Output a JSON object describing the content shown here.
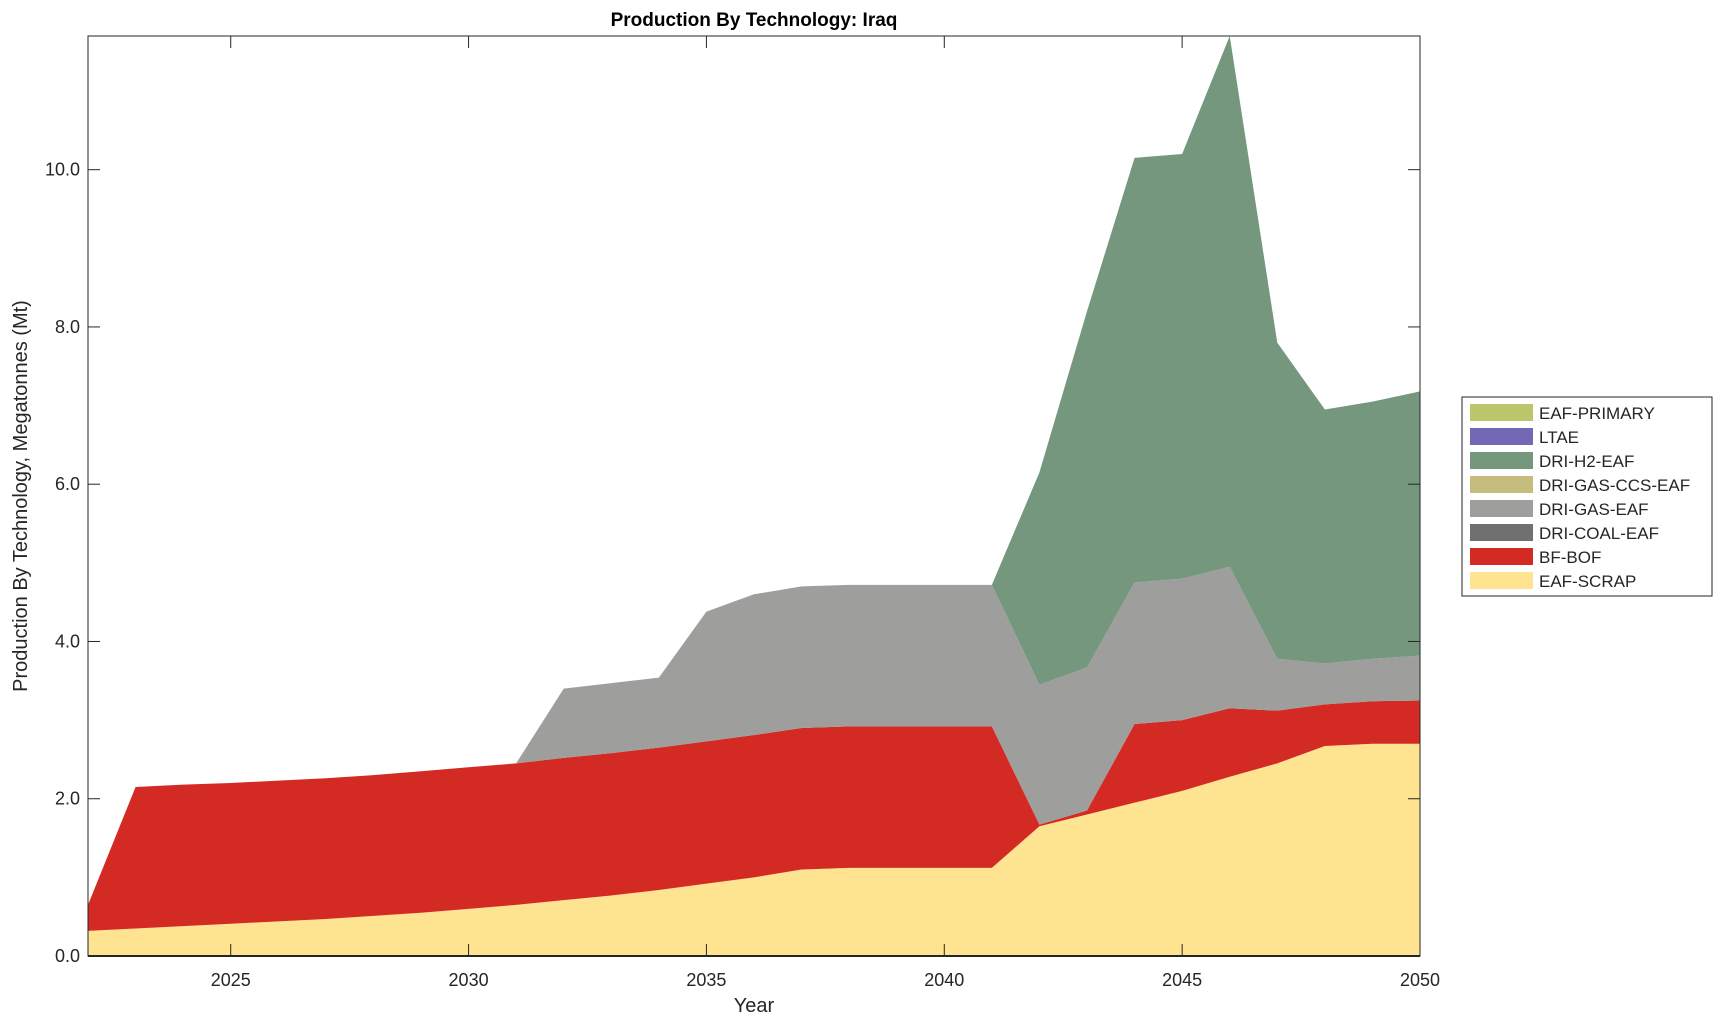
{
  "chart_data": {
    "type": "area",
    "title": "Production By Technology: Iraq",
    "xlabel": "Year",
    "ylabel": "Production By Technology, Megatonnes (Mt)",
    "xlim": [
      2022,
      2050
    ],
    "ylim": [
      0,
      11.7
    ],
    "xticks": [
      2025,
      2030,
      2035,
      2040,
      2045,
      2050
    ],
    "yticks": [
      0,
      2,
      4,
      6,
      8,
      10
    ],
    "ytick_labels": [
      "0.0",
      "2.0",
      "4.0",
      "6.0",
      "8.0",
      "10.0"
    ],
    "legend_position": "right",
    "grid": false,
    "x": [
      2022,
      2023,
      2024,
      2025,
      2026,
      2027,
      2028,
      2029,
      2030,
      2031,
      2032,
      2033,
      2034,
      2035,
      2036,
      2037,
      2038,
      2039,
      2040,
      2041,
      2042,
      2043,
      2044,
      2045,
      2046,
      2047,
      2048,
      2049,
      2050
    ],
    "series": [
      {
        "name": "EAF-SCRAP",
        "color": "#FEE391",
        "values": [
          0.32,
          0.35,
          0.38,
          0.41,
          0.44,
          0.47,
          0.51,
          0.55,
          0.6,
          0.65,
          0.71,
          0.77,
          0.84,
          0.92,
          1.0,
          1.1,
          1.12,
          1.12,
          1.12,
          1.12,
          1.65,
          1.8,
          1.95,
          2.1,
          2.28,
          2.45,
          2.67,
          2.7,
          2.7
        ]
      },
      {
        "name": "BF-BOF",
        "color": "#D42A24",
        "values": [
          0.33,
          1.8,
          1.8,
          1.79,
          1.79,
          1.79,
          1.79,
          1.8,
          1.8,
          1.8,
          1.81,
          1.81,
          1.81,
          1.81,
          1.81,
          1.8,
          1.8,
          1.8,
          1.8,
          1.8,
          0.02,
          0.05,
          1.0,
          0.9,
          0.87,
          0.67,
          0.53,
          0.54,
          0.55
        ]
      },
      {
        "name": "DRI-COAL-EAF",
        "color": "#707070",
        "values": [
          0,
          0,
          0,
          0,
          0,
          0,
          0,
          0,
          0,
          0,
          0,
          0,
          0,
          0,
          0,
          0,
          0,
          0,
          0,
          0,
          0,
          0,
          0,
          0,
          0,
          0,
          0,
          0,
          0
        ]
      },
      {
        "name": "DRI-GAS-EAF",
        "color": "#9E9E9C",
        "values": [
          0,
          0,
          0,
          0,
          0,
          0,
          0,
          0,
          0,
          0,
          0.88,
          0.89,
          0.89,
          1.65,
          1.79,
          1.8,
          1.8,
          1.8,
          1.8,
          1.8,
          1.78,
          1.82,
          1.8,
          1.8,
          1.8,
          0.66,
          0.52,
          0.54,
          0.57
        ]
      },
      {
        "name": "DRI-GAS-CCS-EAF",
        "color": "#C6BC7E",
        "values": [
          0,
          0,
          0,
          0,
          0,
          0,
          0,
          0,
          0,
          0,
          0,
          0,
          0,
          0,
          0,
          0,
          0,
          0,
          0,
          0,
          0,
          0,
          0,
          0,
          0,
          0,
          0,
          0,
          0
        ]
      },
      {
        "name": "DRI-H2-EAF",
        "color": "#74977D",
        "values": [
          0,
          0,
          0,
          0,
          0,
          0,
          0,
          0,
          0,
          0,
          0,
          0,
          0,
          0,
          0,
          0,
          0,
          0,
          0,
          0,
          2.7,
          4.53,
          5.4,
          5.4,
          6.75,
          4.02,
          3.23,
          3.27,
          3.36
        ]
      },
      {
        "name": "LTAE",
        "color": "#7368B5",
        "values": [
          0,
          0,
          0,
          0,
          0,
          0,
          0,
          0,
          0,
          0,
          0,
          0,
          0,
          0,
          0,
          0,
          0,
          0,
          0,
          0,
          0,
          0,
          0,
          0,
          0,
          0,
          0,
          0,
          0
        ]
      },
      {
        "name": "EAF-PRIMARY",
        "color": "#BCC66B",
        "values": [
          0,
          0,
          0,
          0,
          0,
          0,
          0,
          0,
          0,
          0,
          0,
          0,
          0,
          0,
          0,
          0,
          0,
          0,
          0,
          0,
          0,
          0,
          0,
          0,
          0,
          0,
          0,
          0,
          0
        ]
      }
    ]
  }
}
